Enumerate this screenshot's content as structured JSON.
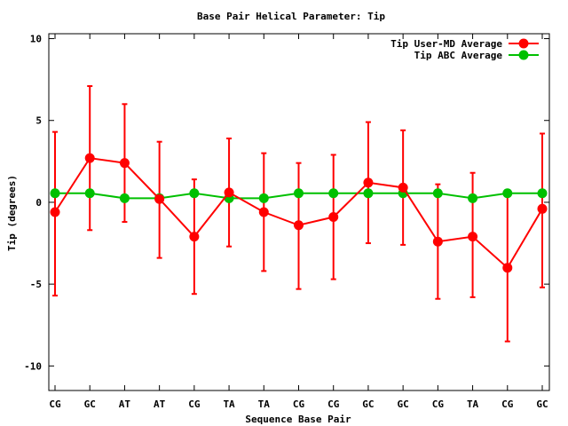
{
  "chart_data": {
    "type": "line",
    "title": "Base Pair Helical Parameter: Tip",
    "xlabel": "Sequence Base Pair",
    "ylabel": "Tip (degrees)",
    "categories": [
      "CG",
      "GC",
      "AT",
      "AT",
      "CG",
      "TA",
      "TA",
      "CG",
      "CG",
      "GC",
      "GC",
      "CG",
      "TA",
      "CG",
      "GC"
    ],
    "ylim": [
      -11.5,
      10.3
    ],
    "yticks": [
      10,
      5,
      0,
      -5,
      -10
    ],
    "grid": false,
    "legend_position": "top-right",
    "series": [
      {
        "name": "Tip User-MD Average",
        "color": "#ff0000",
        "values": [
          -0.6,
          2.7,
          2.4,
          0.2,
          -2.1,
          0.6,
          -0.6,
          -1.4,
          -0.9,
          1.2,
          0.9,
          -2.4,
          -2.1,
          -4.0,
          -0.4
        ],
        "err_low": [
          -5.7,
          -1.7,
          -1.2,
          -3.4,
          -5.6,
          -2.7,
          -4.2,
          -5.3,
          -4.7,
          -2.5,
          -2.6,
          -5.9,
          -5.8,
          -8.5,
          -5.2
        ],
        "err_high": [
          4.3,
          7.1,
          6.0,
          3.7,
          1.4,
          3.9,
          3.0,
          2.4,
          2.9,
          4.9,
          4.4,
          1.1,
          1.8,
          0.5,
          4.2
        ]
      },
      {
        "name": "Tip ABC Average",
        "color": "#00c000",
        "values": [
          0.55,
          0.55,
          0.25,
          0.25,
          0.55,
          0.25,
          0.25,
          0.55,
          0.55,
          0.55,
          0.55,
          0.55,
          0.25,
          0.55,
          0.55
        ]
      }
    ]
  }
}
